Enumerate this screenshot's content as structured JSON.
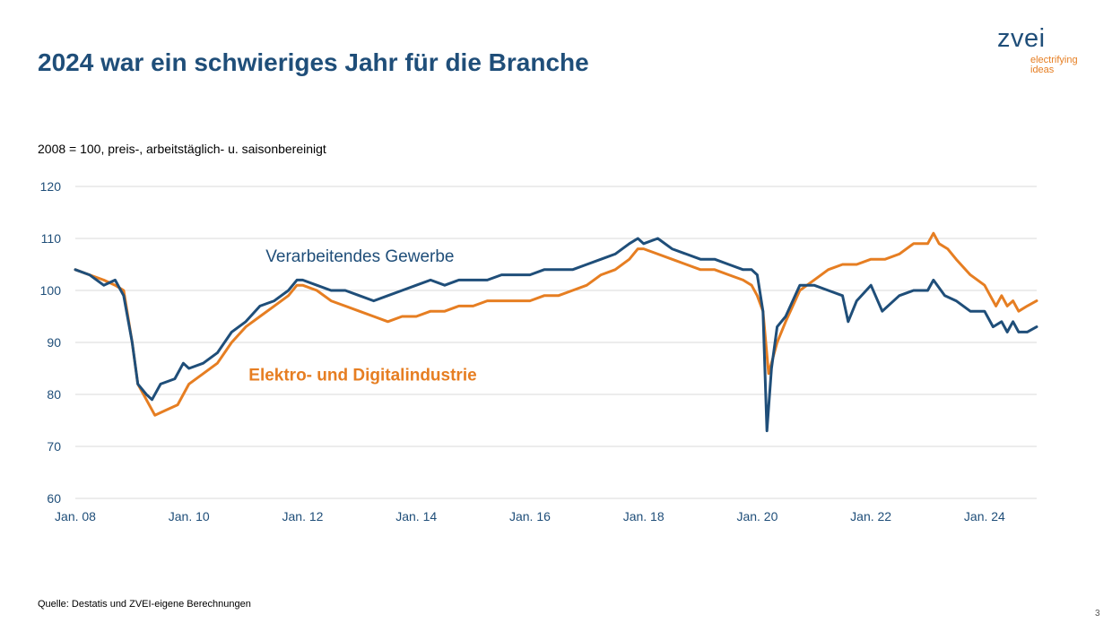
{
  "slide": {
    "title": "2024 war ein schwieriges Jahr für die Branche",
    "logo_word": "zvei",
    "logo_tagline_1": "electrifying",
    "logo_tagline_2": "ideas",
    "subtitle": "2008 = 100, preis-, arbeitstäglich- u. saisonbereinigt",
    "source": "Quelle: Destatis und ZVEI-eigene Berechnungen",
    "page_number": "3"
  },
  "colors": {
    "title": "#1f4e79",
    "series_1": "#1f4e79",
    "series_2": "#e67e22",
    "grid": "#d9d9d9",
    "axis_text": "#1f4e79"
  },
  "chart_data": {
    "type": "line",
    "title": "",
    "xlabel": "",
    "ylabel": "",
    "ylim": [
      60,
      120
    ],
    "yticks": [
      60,
      70,
      80,
      90,
      100,
      110,
      120
    ],
    "xlim": [
      2008.0,
      2024.917
    ],
    "xticks": [
      {
        "label": "Jan. 08",
        "value": 2008
      },
      {
        "label": "Jan. 10",
        "value": 2010
      },
      {
        "label": "Jan. 12",
        "value": 2012
      },
      {
        "label": "Jan. 14",
        "value": 2014
      },
      {
        "label": "Jan. 16",
        "value": 2016
      },
      {
        "label": "Jan. 18",
        "value": 2018
      },
      {
        "label": "Jan. 20",
        "value": 2020
      },
      {
        "label": "Jan. 22",
        "value": 2022
      },
      {
        "label": "Jan. 24",
        "value": 2024
      }
    ],
    "grid": "horizontal",
    "legend": "inline labels",
    "series": [
      {
        "name": "Verarbeitendes Gewerbe",
        "label_anchor": {
          "x": 2011.35,
          "y": 105.5
        },
        "points": [
          [
            2008.0,
            104
          ],
          [
            2008.25,
            103
          ],
          [
            2008.5,
            101
          ],
          [
            2008.7,
            102
          ],
          [
            2008.85,
            99
          ],
          [
            2009.0,
            90
          ],
          [
            2009.1,
            82
          ],
          [
            2009.25,
            80
          ],
          [
            2009.35,
            79
          ],
          [
            2009.5,
            82
          ],
          [
            2009.75,
            83
          ],
          [
            2009.9,
            86
          ],
          [
            2010.0,
            85
          ],
          [
            2010.25,
            86
          ],
          [
            2010.5,
            88
          ],
          [
            2010.75,
            92
          ],
          [
            2011.0,
            94
          ],
          [
            2011.25,
            97
          ],
          [
            2011.5,
            98
          ],
          [
            2011.75,
            100
          ],
          [
            2011.9,
            102
          ],
          [
            2012.0,
            102
          ],
          [
            2012.25,
            101
          ],
          [
            2012.5,
            100
          ],
          [
            2012.75,
            100
          ],
          [
            2013.0,
            99
          ],
          [
            2013.25,
            98
          ],
          [
            2013.5,
            99
          ],
          [
            2013.75,
            100
          ],
          [
            2014.0,
            101
          ],
          [
            2014.25,
            102
          ],
          [
            2014.5,
            101
          ],
          [
            2014.75,
            102
          ],
          [
            2015.0,
            102
          ],
          [
            2015.25,
            102
          ],
          [
            2015.5,
            103
          ],
          [
            2015.75,
            103
          ],
          [
            2016.0,
            103
          ],
          [
            2016.25,
            104
          ],
          [
            2016.5,
            104
          ],
          [
            2016.75,
            104
          ],
          [
            2017.0,
            105
          ],
          [
            2017.25,
            106
          ],
          [
            2017.5,
            107
          ],
          [
            2017.75,
            109
          ],
          [
            2017.9,
            110
          ],
          [
            2018.0,
            109
          ],
          [
            2018.25,
            110
          ],
          [
            2018.5,
            108
          ],
          [
            2018.75,
            107
          ],
          [
            2019.0,
            106
          ],
          [
            2019.25,
            106
          ],
          [
            2019.5,
            105
          ],
          [
            2019.75,
            104
          ],
          [
            2019.9,
            104
          ],
          [
            2020.0,
            103
          ],
          [
            2020.1,
            96
          ],
          [
            2020.17,
            73
          ],
          [
            2020.25,
            85
          ],
          [
            2020.35,
            93
          ],
          [
            2020.5,
            95
          ],
          [
            2020.75,
            101
          ],
          [
            2021.0,
            101
          ],
          [
            2021.25,
            100
          ],
          [
            2021.5,
            99
          ],
          [
            2021.6,
            94
          ],
          [
            2021.75,
            98
          ],
          [
            2022.0,
            101
          ],
          [
            2022.2,
            96
          ],
          [
            2022.5,
            99
          ],
          [
            2022.75,
            100
          ],
          [
            2023.0,
            100
          ],
          [
            2023.1,
            102
          ],
          [
            2023.3,
            99
          ],
          [
            2023.5,
            98
          ],
          [
            2023.75,
            96
          ],
          [
            2024.0,
            96
          ],
          [
            2024.15,
            93
          ],
          [
            2024.3,
            94
          ],
          [
            2024.4,
            92
          ],
          [
            2024.5,
            94
          ],
          [
            2024.6,
            92
          ],
          [
            2024.75,
            92
          ],
          [
            2024.917,
            93
          ]
        ]
      },
      {
        "name": "Elektro- und Digitalindustrie",
        "label_anchor": {
          "x": 2011.05,
          "y": 82.7
        },
        "points": [
          [
            2008.0,
            104
          ],
          [
            2008.25,
            103
          ],
          [
            2008.5,
            102
          ],
          [
            2008.7,
            101
          ],
          [
            2008.85,
            100
          ],
          [
            2009.0,
            90
          ],
          [
            2009.1,
            82
          ],
          [
            2009.25,
            79
          ],
          [
            2009.4,
            76
          ],
          [
            2009.6,
            77
          ],
          [
            2009.8,
            78
          ],
          [
            2010.0,
            82
          ],
          [
            2010.25,
            84
          ],
          [
            2010.5,
            86
          ],
          [
            2010.75,
            90
          ],
          [
            2011.0,
            93
          ],
          [
            2011.25,
            95
          ],
          [
            2011.5,
            97
          ],
          [
            2011.75,
            99
          ],
          [
            2011.9,
            101
          ],
          [
            2012.0,
            101
          ],
          [
            2012.25,
            100
          ],
          [
            2012.5,
            98
          ],
          [
            2012.75,
            97
          ],
          [
            2013.0,
            96
          ],
          [
            2013.25,
            95
          ],
          [
            2013.5,
            94
          ],
          [
            2013.75,
            95
          ],
          [
            2014.0,
            95
          ],
          [
            2014.25,
            96
          ],
          [
            2014.5,
            96
          ],
          [
            2014.75,
            97
          ],
          [
            2015.0,
            97
          ],
          [
            2015.25,
            98
          ],
          [
            2015.5,
            98
          ],
          [
            2015.75,
            98
          ],
          [
            2016.0,
            98
          ],
          [
            2016.25,
            99
          ],
          [
            2016.5,
            99
          ],
          [
            2016.75,
            100
          ],
          [
            2017.0,
            101
          ],
          [
            2017.25,
            103
          ],
          [
            2017.5,
            104
          ],
          [
            2017.75,
            106
          ],
          [
            2017.9,
            108
          ],
          [
            2018.0,
            108
          ],
          [
            2018.25,
            107
          ],
          [
            2018.5,
            106
          ],
          [
            2018.75,
            105
          ],
          [
            2019.0,
            104
          ],
          [
            2019.25,
            104
          ],
          [
            2019.5,
            103
          ],
          [
            2019.75,
            102
          ],
          [
            2019.9,
            101
          ],
          [
            2020.0,
            99
          ],
          [
            2020.1,
            96
          ],
          [
            2020.2,
            84
          ],
          [
            2020.35,
            90
          ],
          [
            2020.5,
            94
          ],
          [
            2020.75,
            100
          ],
          [
            2021.0,
            102
          ],
          [
            2021.25,
            104
          ],
          [
            2021.5,
            105
          ],
          [
            2021.75,
            105
          ],
          [
            2022.0,
            106
          ],
          [
            2022.25,
            106
          ],
          [
            2022.5,
            107
          ],
          [
            2022.75,
            109
          ],
          [
            2023.0,
            109
          ],
          [
            2023.1,
            111
          ],
          [
            2023.2,
            109
          ],
          [
            2023.35,
            108
          ],
          [
            2023.5,
            106
          ],
          [
            2023.75,
            103
          ],
          [
            2024.0,
            101
          ],
          [
            2024.1,
            99
          ],
          [
            2024.2,
            97
          ],
          [
            2024.3,
            99
          ],
          [
            2024.4,
            97
          ],
          [
            2024.5,
            98
          ],
          [
            2024.6,
            96
          ],
          [
            2024.75,
            97
          ],
          [
            2024.917,
            98
          ]
        ]
      }
    ]
  }
}
